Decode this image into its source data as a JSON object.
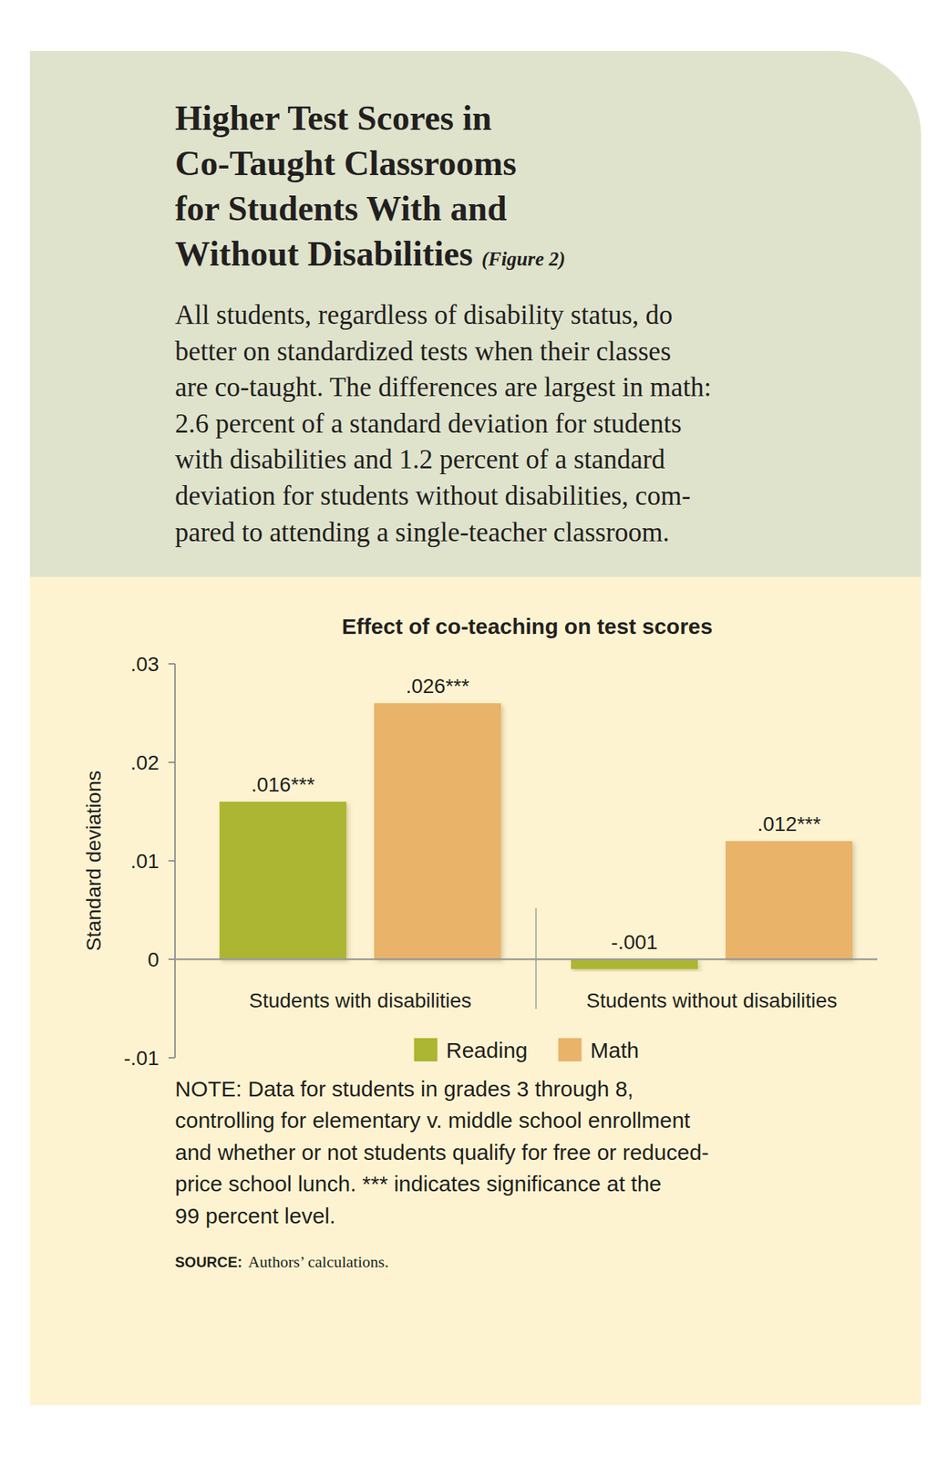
{
  "header": {
    "title_lines": [
      "Higher Test Scores in",
      "Co-Taught Classrooms",
      "for Students With and",
      "Without Disabilities"
    ],
    "figure_label": "(Figure 2)",
    "description_lines": [
      "All students, regardless of disability status, do",
      "better on standardized tests when their classes",
      "are co-taught. The differences are largest in math:",
      "2.6 percent of a standard deviation for students",
      "with disabilities and 1.2 percent of a standard",
      "deviation for students without disabilities, com-",
      "pared to attending a single-teacher classroom."
    ]
  },
  "chart_data": {
    "type": "bar",
    "title": "Effect of co-teaching on test scores",
    "y_label": "Standard deviations",
    "categories": [
      "Students with disabilities",
      "Students without disabilities"
    ],
    "series": [
      {
        "name": "Reading",
        "color": "#adb632",
        "values": [
          0.016,
          -0.001
        ],
        "value_labels": [
          ".016***",
          "-.001"
        ]
      },
      {
        "name": "Math",
        "color": "#e9b46a",
        "values": [
          0.026,
          0.012
        ],
        "value_labels": [
          ".026***",
          ".012***"
        ]
      }
    ],
    "ylim": [
      -0.01,
      0.03
    ],
    "yticks": [
      {
        "value": -0.01,
        "label": "-.01"
      },
      0,
      {
        "value": 0.01,
        "label": ".01"
      },
      {
        "value": 0.02,
        "label": ".02"
      },
      {
        "value": 0.03,
        "label": ".03"
      }
    ],
    "grid": false,
    "legend": "bottom",
    "data_labels": true
  },
  "footer": {
    "note_lines": [
      "NOTE: Data for students in grades 3 through 8,",
      "controlling for elementary v. middle school enrollment",
      "and whether or not students qualify for free or reduced-",
      "price school lunch. *** indicates significance at the",
      "99 percent level."
    ],
    "source_label": "SOURCE:",
    "source": "Authors’ calculations."
  }
}
